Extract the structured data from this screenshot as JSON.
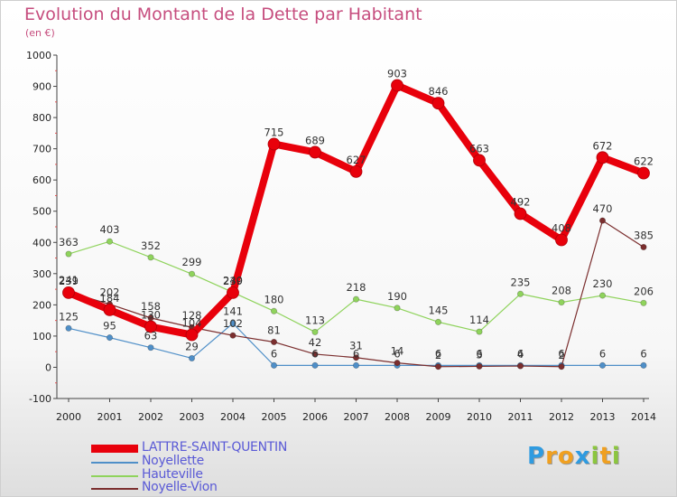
{
  "header": {
    "title": "Evolution du Montant de la Dette par Habitant",
    "subtitle": "(en €)"
  },
  "chart_data": {
    "type": "line",
    "title": "Evolution du Montant de la Dette par Habitant",
    "subtitle": "(en €)",
    "xlabel": "",
    "ylabel": "",
    "categories": [
      "2000",
      "2001",
      "2002",
      "2003",
      "2004",
      "2005",
      "2006",
      "2007",
      "2008",
      "2009",
      "2010",
      "2011",
      "2012",
      "2013",
      "2014"
    ],
    "ylim": [
      -100,
      1000
    ],
    "yticks": [
      -100,
      0,
      100,
      200,
      300,
      400,
      500,
      600,
      700,
      800,
      900,
      1000
    ],
    "grid": false,
    "legend_position": "bottom-left",
    "series": [
      {
        "name": "LATTRE-SAINT-QUENTIN",
        "color": "#e8000b",
        "width": 8,
        "values": [
          239,
          184,
          130,
          104,
          239,
          715,
          689,
          627,
          903,
          846,
          663,
          492,
          408,
          672,
          622
        ],
        "labels": [
          "239",
          "184",
          "130",
          "104",
          "239",
          "715",
          "689",
          "627",
          "903",
          "846",
          "663",
          "492",
          "408",
          "672",
          "622"
        ]
      },
      {
        "name": "Noyellette",
        "color": "#4f8fc8",
        "width": 1.2,
        "values": [
          125,
          95,
          63,
          29,
          141,
          6,
          6,
          6,
          6,
          6,
          6,
          6,
          6,
          6,
          6
        ],
        "labels": [
          "125",
          "95",
          "63",
          "29",
          "141",
          "6",
          "6",
          "6",
          "6",
          "6",
          "6",
          "6",
          "6",
          "6",
          "6"
        ]
      },
      {
        "name": "Hauteville",
        "color": "#8fd35c",
        "width": 1.2,
        "values": [
          363,
          403,
          352,
          299,
          240,
          180,
          113,
          218,
          190,
          145,
          114,
          235,
          208,
          230,
          206
        ],
        "labels": [
          "363",
          "403",
          "352",
          "299",
          "240",
          "180",
          "113",
          "218",
          "190",
          "145",
          "114",
          "235",
          "208",
          "230",
          "206"
        ]
      },
      {
        "name": "Noyelle-Vion",
        "color": "#7b2e2e",
        "width": 1.2,
        "values": [
          241,
          202,
          158,
          128,
          102,
          81,
          42,
          31,
          14,
          2,
          3,
          4,
          2,
          470,
          385
        ],
        "labels": [
          "241",
          "202",
          "158",
          "128",
          "102",
          "81",
          "42",
          "31",
          "14",
          "2",
          "3",
          "4",
          "2",
          "470",
          "385"
        ]
      }
    ]
  },
  "logo": {
    "letters": [
      {
        "ch": "P",
        "color": "#2f9be0"
      },
      {
        "ch": "r",
        "color": "#f0a020"
      },
      {
        "ch": "o",
        "color": "#f0a020"
      },
      {
        "ch": "x",
        "color": "#2f9be0"
      },
      {
        "ch": "i",
        "color": "#8cc63f"
      },
      {
        "ch": "t",
        "color": "#f0a020"
      },
      {
        "ch": "i",
        "color": "#8cc63f"
      }
    ]
  }
}
